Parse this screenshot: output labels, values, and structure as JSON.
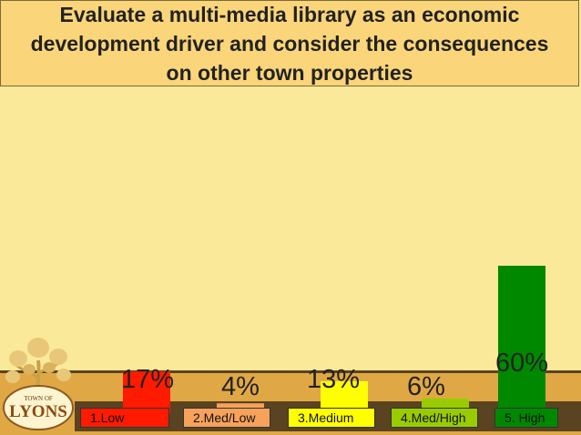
{
  "title": "Evaluate a multi-media library as an economic development driver and consider the consequences on other town properties",
  "logo": {
    "line1": "TOWN OF",
    "line2": "LYONS"
  },
  "colors": {
    "background": "#fbe99a",
    "title_box": "#fbd57a",
    "footer": "#e0a845",
    "footer_dark": "#5a4320",
    "low": "#ff1a00",
    "med_low": "#f7a25a",
    "medium": "#ffff00",
    "med_high": "#99cc00",
    "high": "#008800"
  },
  "chart_data": {
    "type": "bar",
    "categories": [
      "1.Low",
      "2.Med/Low",
      "3.Medium",
      "4.Med/High",
      "5. High"
    ],
    "values": [
      17,
      4,
      13,
      6,
      60
    ],
    "value_labels": [
      "17%",
      "4%",
      "13%",
      "6%",
      "60%"
    ],
    "bar_colors": [
      "#ff1a00",
      "#f7a25a",
      "#ffff00",
      "#99cc00",
      "#008800"
    ],
    "ylim": [
      0,
      100
    ],
    "grid": false,
    "legend": "bottom"
  }
}
